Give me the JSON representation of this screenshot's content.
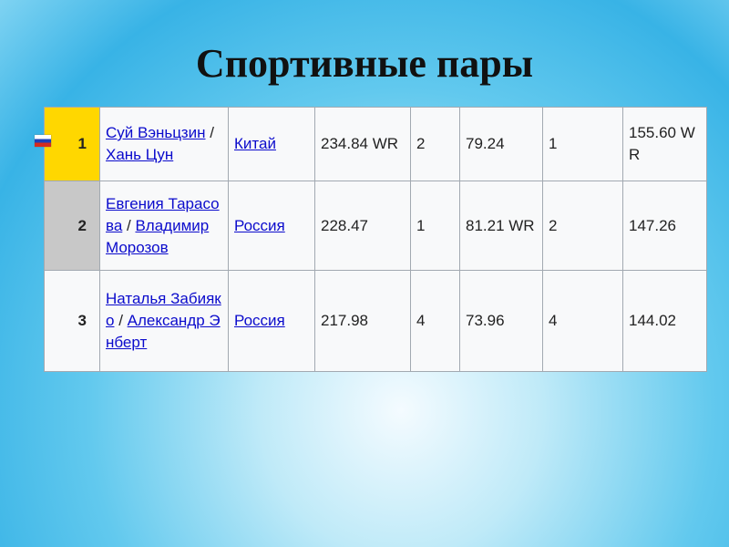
{
  "title": "Спортивные пары",
  "colors": {
    "gold": "#ffd700",
    "silver": "#c8c8c8",
    "bronze": "#f8f9fa",
    "link": "#0b0bcc"
  },
  "rows": [
    {
      "rank": "1",
      "p1": "Суй Вэньцзин",
      "sep": " / ",
      "p2": "Хань Цун",
      "country": "Китай",
      "total": "234.84 WR",
      "sp_place": "2",
      "sp": "79.24",
      "fs_place": "1",
      "fs": "155.60 WR"
    },
    {
      "rank": "2",
      "p1": "Евгения Тарасова",
      "sep": " / ",
      "p2": "Владимир Морозов",
      "country": "Россия",
      "total": "228.47",
      "sp_place": "1",
      "sp": "81.21 WR",
      "fs_place": "2",
      "fs": "147.26"
    },
    {
      "rank": "3",
      "p1": "Наталья Забияко",
      "sep": " / ",
      "p2": "Александр Энберт",
      "country": "Россия",
      "total": "217.98",
      "sp_place": "4",
      "sp": "73.96",
      "fs_place": "4",
      "fs": "144.02"
    }
  ]
}
